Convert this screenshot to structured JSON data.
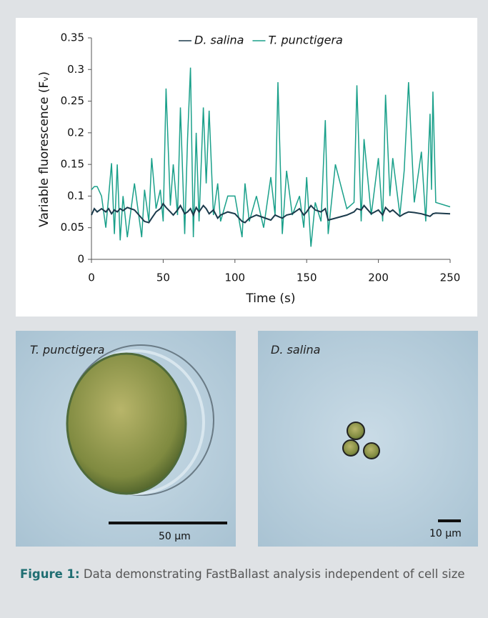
{
  "chart_data": {
    "type": "line",
    "x_label": "Time (s)",
    "y_label": "Variable fluorescence (Fᵥ)",
    "x": [
      0,
      2,
      4,
      7,
      10,
      12,
      14,
      16,
      18,
      20,
      22,
      25,
      30,
      35,
      37,
      40,
      42,
      45,
      48,
      50,
      52,
      55,
      57,
      60,
      62,
      65,
      67,
      69,
      71,
      73,
      75,
      78,
      80,
      82,
      85,
      88,
      90,
      95,
      100,
      105,
      107,
      110,
      115,
      120,
      125,
      128,
      130,
      133,
      136,
      140,
      145,
      148,
      150,
      153,
      156,
      160,
      163,
      165,
      170,
      178,
      183,
      185,
      188,
      190,
      195,
      200,
      203,
      205,
      208,
      210,
      215,
      218,
      221,
      225,
      230,
      233,
      236,
      237,
      238,
      240,
      250
    ],
    "series": [
      {
        "name": "T. punctigera",
        "color": "#1aa08a",
        "values": [
          0.11,
          0.115,
          0.115,
          0.1,
          0.05,
          0.1,
          0.152,
          0.04,
          0.15,
          0.03,
          0.1,
          0.035,
          0.12,
          0.035,
          0.11,
          0.06,
          0.16,
          0.08,
          0.11,
          0.06,
          0.27,
          0.085,
          0.15,
          0.07,
          0.24,
          0.04,
          0.19,
          0.303,
          0.035,
          0.2,
          0.06,
          0.24,
          0.12,
          0.235,
          0.07,
          0.12,
          0.06,
          0.1,
          0.1,
          0.035,
          0.12,
          0.06,
          0.1,
          0.05,
          0.13,
          0.07,
          0.28,
          0.04,
          0.14,
          0.07,
          0.1,
          0.05,
          0.13,
          0.02,
          0.09,
          0.06,
          0.22,
          0.04,
          0.15,
          0.08,
          0.09,
          0.275,
          0.06,
          0.19,
          0.07,
          0.16,
          0.06,
          0.26,
          0.1,
          0.16,
          0.07,
          0.14,
          0.28,
          0.09,
          0.17,
          0.06,
          0.23,
          0.11,
          0.265,
          0.09,
          0.083
        ]
      },
      {
        "name": "D. salina",
        "color": "#1b3a4b",
        "values": [
          0.07,
          0.08,
          0.075,
          0.08,
          0.075,
          0.08,
          0.072,
          0.078,
          0.075,
          0.08,
          0.077,
          0.082,
          0.078,
          0.065,
          0.06,
          0.058,
          0.065,
          0.075,
          0.08,
          0.088,
          0.082,
          0.075,
          0.07,
          0.078,
          0.085,
          0.072,
          0.075,
          0.08,
          0.07,
          0.082,
          0.075,
          0.085,
          0.08,
          0.072,
          0.078,
          0.065,
          0.07,
          0.075,
          0.072,
          0.06,
          0.058,
          0.065,
          0.07,
          0.066,
          0.062,
          0.07,
          0.068,
          0.065,
          0.07,
          0.072,
          0.08,
          0.07,
          0.075,
          0.085,
          0.078,
          0.075,
          0.08,
          0.062,
          0.065,
          0.07,
          0.075,
          0.08,
          0.078,
          0.085,
          0.072,
          0.078,
          0.07,
          0.082,
          0.075,
          0.078,
          0.068,
          0.072,
          0.075,
          0.074,
          0.072,
          0.07,
          0.068,
          0.07,
          0.072,
          0.073,
          0.072
        ]
      }
    ],
    "legend_order": [
      1,
      0
    ],
    "legend": "top",
    "xlim": [
      0,
      250
    ],
    "xticks": [
      0,
      50,
      100,
      150,
      200,
      250
    ],
    "ylim": [
      0,
      0.35
    ],
    "yticks": [
      0,
      0.05,
      0.1,
      0.15,
      0.2,
      0.25,
      0.3,
      0.35
    ]
  },
  "images": [
    {
      "label": "T. punctigera",
      "scale_bar": "50 μm"
    },
    {
      "label": "D. salina",
      "scale_bar": "10 μm"
    }
  ],
  "caption": {
    "label": "Figure 1:",
    "text": "Data demonstrating FastBallast analysis independent of cell size"
  }
}
